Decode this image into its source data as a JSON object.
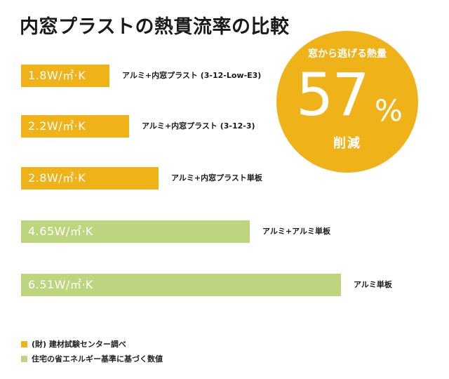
{
  "title": "内窓プラストの熱貫流率の比較",
  "colors": {
    "yellow": "#f0b219",
    "green": "#bdd57f"
  },
  "chart_data": {
    "type": "bar",
    "orientation": "horizontal",
    "unit": "W/㎡·K",
    "bars": [
      {
        "value": 1.8,
        "label": "1.8W/㎡·K",
        "category": "アルミ+内窓プラスト (3-12-Low-E3)",
        "color": "yellow"
      },
      {
        "value": 2.2,
        "label": "2.2W/㎡·K",
        "category": "アルミ+内窓プラスト (3-12-3)",
        "color": "yellow"
      },
      {
        "value": 2.8,
        "label": "2.8W/㎡·K",
        "category": "アルミ+内窓プラスト単板",
        "color": "yellow"
      },
      {
        "value": 4.65,
        "label": "4.65W/㎡·K",
        "category": "アルミ+アルミ単板",
        "color": "green"
      },
      {
        "value": 6.51,
        "label": "6.51W/㎡·K",
        "category": "アルミ単板",
        "color": "green"
      }
    ]
  },
  "highlight": {
    "top": "窓から逃げる熱量",
    "number": "57",
    "percent": "%",
    "bottom": "削減"
  },
  "legend": [
    {
      "text": "(財) 建材試験センター調べ",
      "color": "yellow"
    },
    {
      "text": "住宅の省エネルギー基準に基づく数値",
      "color": "green"
    }
  ]
}
